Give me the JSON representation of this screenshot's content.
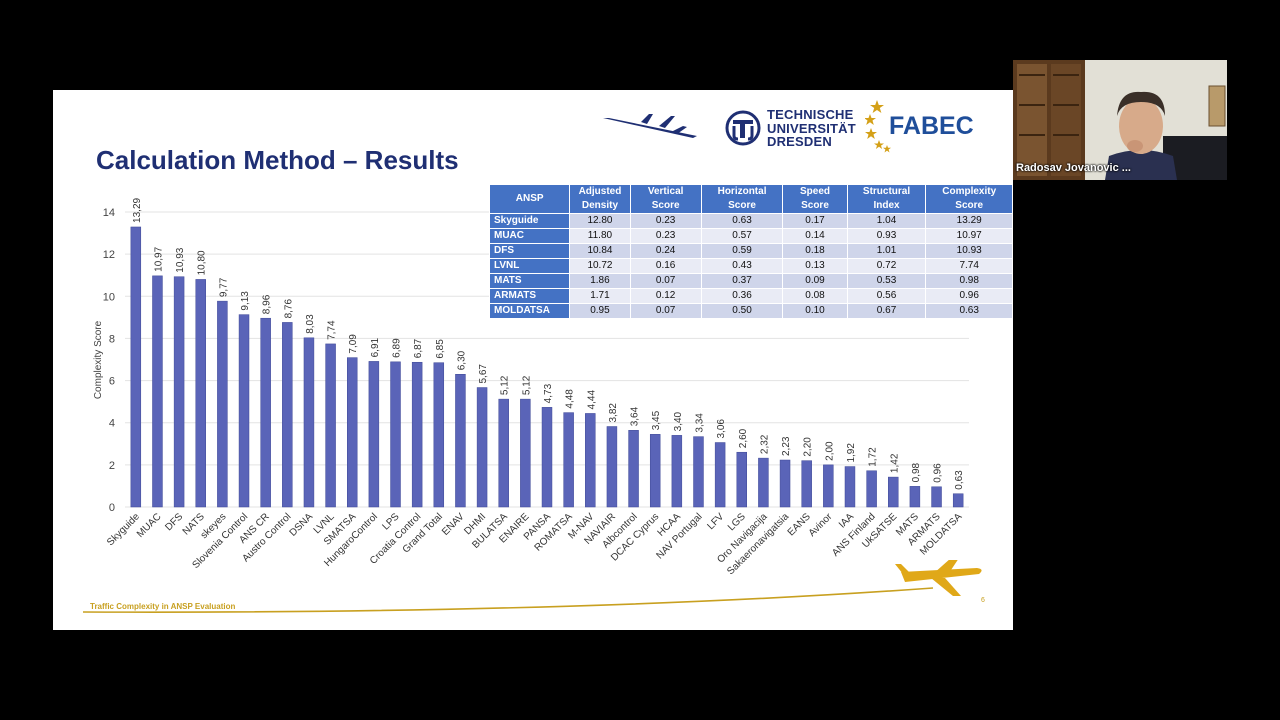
{
  "slide": {
    "title": "Calculation Method – Results",
    "footer_text": "Traffic Complexity in ANSP Evaluation",
    "page_number": "6"
  },
  "logos": {
    "tu_line1": "TECHNISCHE",
    "tu_line2": "UNIVERSITÄT",
    "tu_line3": "DRESDEN",
    "fabec": "FABEC"
  },
  "colors": {
    "bar": "#5a64b8",
    "title": "#1f2f73",
    "table_header": "#4472c4",
    "footer_gold": "#c8a020"
  },
  "table": {
    "headers": [
      [
        "ANSP"
      ],
      [
        "Adjusted",
        "Density"
      ],
      [
        "Vertical",
        "Score"
      ],
      [
        "Horizontal",
        "Score"
      ],
      [
        "Speed",
        "Score"
      ],
      [
        "Structural",
        "Index"
      ],
      [
        "Complexity",
        "Score"
      ]
    ],
    "rows": [
      [
        "Skyguide",
        "12.80",
        "0.23",
        "0.63",
        "0.17",
        "1.04",
        "13.29"
      ],
      [
        "MUAC",
        "11.80",
        "0.23",
        "0.57",
        "0.14",
        "0.93",
        "10.97"
      ],
      [
        "DFS",
        "10.84",
        "0.24",
        "0.59",
        "0.18",
        "1.01",
        "10.93"
      ],
      [
        "LVNL",
        "10.72",
        "0.16",
        "0.43",
        "0.13",
        "0.72",
        "7.74"
      ],
      [
        "MATS",
        "1.86",
        "0.07",
        "0.37",
        "0.09",
        "0.53",
        "0.98"
      ],
      [
        "ARMATS",
        "1.71",
        "0.12",
        "0.36",
        "0.08",
        "0.56",
        "0.96"
      ],
      [
        "MOLDATSA",
        "0.95",
        "0.07",
        "0.50",
        "0.10",
        "0.67",
        "0.63"
      ]
    ]
  },
  "webcam": {
    "caption": "Radosav Jovanovic ..."
  },
  "chart_data": {
    "type": "bar",
    "ylabel": "Complexity Score",
    "ylim": [
      0,
      14
    ],
    "yticks": [
      "0",
      "2",
      "4",
      "6",
      "8",
      "10",
      "12",
      "14"
    ],
    "grid": true,
    "categories": [
      "Skyguide",
      "MUAC",
      "DFS",
      "NATS",
      "skeyes",
      "Slovenia Control",
      "ANS CR",
      "Austro Control",
      "DSNA",
      "LVNL",
      "SMATSA",
      "HungaroControl",
      "LPS",
      "Croatia Control",
      "Grand Total",
      "ENAV",
      "DHMI",
      "BULATSA",
      "ENAIRE",
      "PANSA",
      "ROMATSA",
      "M-NAV",
      "NAVIAIR",
      "Albcontrol",
      "DCAC Cyprus",
      "HCAA",
      "NAV Portugal",
      "LFV",
      "LGS",
      "Oro Navigacija",
      "Sakaeronavigatsia",
      "EANS",
      "Avinor",
      "IAA",
      "ANS Finland",
      "UkSATSE",
      "MATS",
      "ARMATS",
      "MOLDATSA"
    ],
    "values": [
      13.29,
      10.97,
      10.93,
      10.8,
      9.77,
      9.13,
      8.96,
      8.76,
      8.03,
      7.74,
      7.09,
      6.91,
      6.89,
      6.87,
      6.85,
      6.3,
      5.67,
      5.12,
      5.12,
      4.73,
      4.48,
      4.44,
      3.82,
      3.64,
      3.45,
      3.4,
      3.34,
      3.06,
      2.6,
      2.32,
      2.23,
      2.2,
      2.0,
      1.92,
      1.72,
      1.42,
      0.98,
      0.96,
      0.63
    ],
    "value_labels": [
      "13,29",
      "10,97",
      "10,93",
      "10,80",
      "9,77",
      "9,13",
      "8,96",
      "8,76",
      "8,03",
      "7,74",
      "7,09",
      "6,91",
      "6,89",
      "6,87",
      "6,85",
      "6,30",
      "5,67",
      "5,12",
      "5,12",
      "4,73",
      "4,48",
      "4,44",
      "3,82",
      "3,64",
      "3,45",
      "3,40",
      "3,34",
      "3,06",
      "2,60",
      "2,32",
      "2,23",
      "2,20",
      "2,00",
      "1,92",
      "1,72",
      "1,42",
      "0,98",
      "0,96",
      "0,63"
    ]
  }
}
